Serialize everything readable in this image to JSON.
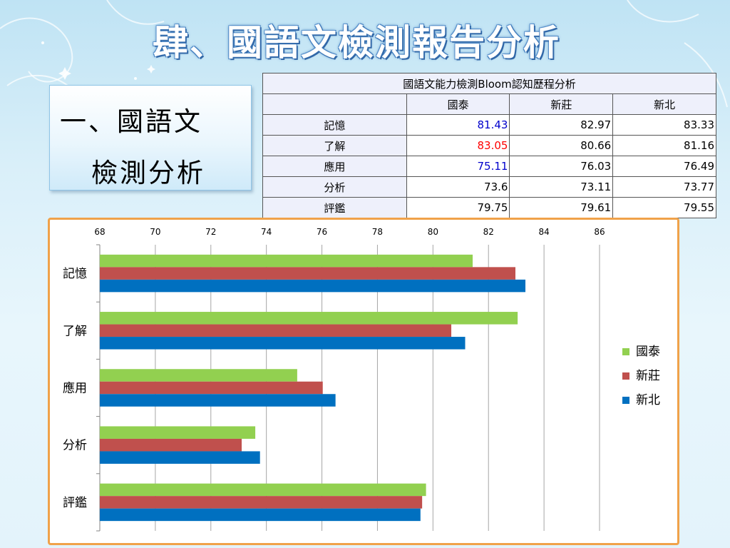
{
  "slide": {
    "title": "肆、國語文檢測報告分析",
    "subtitle_line1": "一、國語文",
    "subtitle_line2": "檢測分析"
  },
  "table": {
    "title": "國語文能力檢測Bloom認知歷程分析",
    "columns": [
      "國泰",
      "新莊",
      "新北"
    ],
    "rows": [
      {
        "label": "記憶",
        "values": [
          "81.43",
          "82.97",
          "83.33"
        ]
      },
      {
        "label": "了解",
        "values": [
          "83.05",
          "80.66",
          "81.16"
        ]
      },
      {
        "label": "應用",
        "values": [
          "75.11",
          "76.03",
          "76.49"
        ]
      },
      {
        "label": "分析",
        "values": [
          "73.6",
          "73.11",
          "73.77"
        ]
      },
      {
        "label": "評鑑",
        "values": [
          "79.75",
          "79.61",
          "79.55"
        ]
      }
    ],
    "highlight_colors": [
      "#0000cc",
      "#ff0000",
      "#0000cc",
      "",
      ""
    ]
  },
  "chart_data": {
    "type": "bar",
    "orientation": "horizontal",
    "categories": [
      "記憶",
      "了解",
      "應用",
      "分析",
      "評鑑"
    ],
    "series": [
      {
        "name": "國泰",
        "color": "#92d050",
        "values": [
          81.43,
          83.05,
          75.11,
          73.6,
          79.75
        ]
      },
      {
        "name": "新莊",
        "color": "#c0504d",
        "values": [
          82.97,
          80.66,
          76.03,
          73.11,
          79.61
        ]
      },
      {
        "name": "新北",
        "color": "#0070c0",
        "values": [
          83.33,
          81.16,
          76.49,
          73.77,
          79.55
        ]
      }
    ],
    "xlim": [
      68,
      86
    ],
    "xticks": [
      68,
      70,
      72,
      74,
      76,
      78,
      80,
      82,
      84,
      86
    ],
    "grid": true,
    "legend": "right"
  }
}
